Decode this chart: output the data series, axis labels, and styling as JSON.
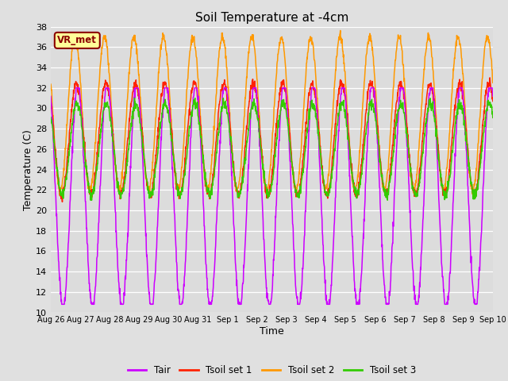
{
  "title": "Soil Temperature at -4cm",
  "xlabel": "Time",
  "ylabel": "Temperature (C)",
  "ylim": [
    10,
    38
  ],
  "fig_bg_color": "#e0e0e0",
  "plot_bg_color": "#dcdcdc",
  "grid_color": "#ffffff",
  "x_tick_labels": [
    "Aug 26",
    "Aug 27",
    "Aug 28",
    "Aug 29",
    "Aug 30",
    "Aug 31",
    "Sep 1",
    "Sep 2",
    "Sep 3",
    "Sep 4",
    "Sep 5",
    "Sep 6",
    "Sep 7",
    "Sep 8",
    "Sep 9",
    "Sep 10"
  ],
  "colors": {
    "Tair": "#cc00ff",
    "Tsoil_set1": "#ff2200",
    "Tsoil_set2": "#ff9900",
    "Tsoil_set3": "#33cc00"
  },
  "legend_labels": [
    "Tair",
    "Tsoil set 1",
    "Tsoil set 2",
    "Tsoil set 3"
  ],
  "watermark": "VR_met",
  "watermark_fg": "#8B0000",
  "watermark_bg": "#ffff99",
  "watermark_edge": "#8B0000",
  "n_points": 1500,
  "tair_mean": 21.5,
  "tair_amp": 11.0,
  "tsoil1_mean": 27.0,
  "tsoil1_amp": 5.5,
  "tsoil2_mean": 29.5,
  "tsoil2_amp": 7.5,
  "tsoil3_mean": 26.0,
  "tsoil3_amp": 4.5,
  "tair_min": 10.8,
  "tair_max": 32.0,
  "tsoil1_min": 20.5,
  "tsoil1_max": 34.0,
  "tsoil2_min": 20.5,
  "tsoil2_max": 38.0,
  "tsoil3_min": 21.0,
  "tsoil3_max": 31.0
}
